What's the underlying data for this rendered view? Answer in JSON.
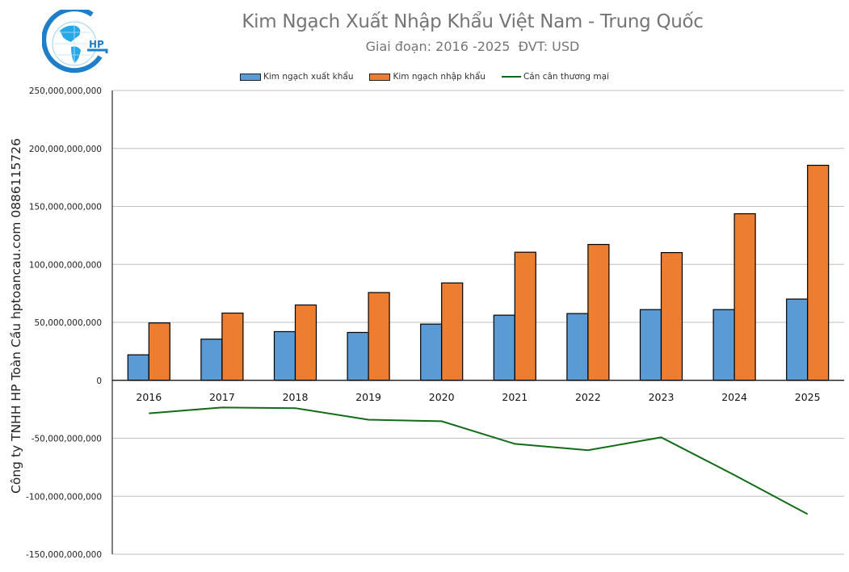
{
  "header": {
    "title": "Kim Ngạch Xuất Nhập Khẩu Việt Nam - Trung Quốc",
    "subtitle": "Giai đoạn: 2016 -2025  ĐVT: USD",
    "logo_text": "HP"
  },
  "side_label": "Công ty TNHH HP Toàn Cầu hptoancau.com 0886115726",
  "legend": [
    {
      "label": "Kim ngạch xuất khẩu",
      "type": "bar",
      "color": "#5B9BD5"
    },
    {
      "label": "Kim ngạch nhập khẩu",
      "type": "bar",
      "color": "#ED7D31"
    },
    {
      "label": "Cán cân thương mại",
      "type": "line",
      "color": "#126B17"
    }
  ],
  "chart_data": {
    "type": "bar",
    "title": "Kim Ngạch Xuất Nhập Khẩu Việt Nam - Trung Quốc",
    "subtitle": "Giai đoạn: 2016 -2025  ĐVT: USD",
    "xlabel": "",
    "ylabel": "",
    "categories": [
      "2016",
      "2017",
      "2018",
      "2019",
      "2020",
      "2021",
      "2022",
      "2023",
      "2024",
      "2025"
    ],
    "series": [
      {
        "name": "Kim ngạch xuất khẩu",
        "type": "bar",
        "color": "#5B9BD5",
        "values": [
          22000000000,
          35500000000,
          42000000000,
          41300000000,
          48500000000,
          56200000000,
          57600000000,
          61000000000,
          61000000000,
          70100000000
        ]
      },
      {
        "name": "Kim ngạch nhập khẩu",
        "type": "bar",
        "color": "#ED7D31",
        "values": [
          49500000000,
          58000000000,
          65000000000,
          75700000000,
          84000000000,
          110500000000,
          117200000000,
          110200000000,
          143700000000,
          185500000000
        ]
      },
      {
        "name": "Cán cân thương mại",
        "type": "line",
        "color": "#126B17",
        "values": [
          -28500000000,
          -23400000000,
          -24000000000,
          -34000000000,
          -35300000000,
          -54800000000,
          -60300000000,
          -49200000000,
          -81700000000,
          -115400000000
        ]
      }
    ],
    "ylim": [
      -150000000000,
      250000000000
    ],
    "yticks": [
      250000000000,
      200000000000,
      150000000000,
      100000000000,
      50000000000,
      0,
      -50000000000,
      -100000000000,
      -150000000000
    ],
    "ytick_labels": [
      "250,000,000,000",
      "200,000,000,000",
      "150,000,000,000",
      "100,000,000,000",
      "50,000,000,000",
      "0",
      "-50,000,000,000",
      "-100,000,000,000",
      "-150,000,000,000"
    ],
    "grid": true,
    "legend_position": "top"
  }
}
